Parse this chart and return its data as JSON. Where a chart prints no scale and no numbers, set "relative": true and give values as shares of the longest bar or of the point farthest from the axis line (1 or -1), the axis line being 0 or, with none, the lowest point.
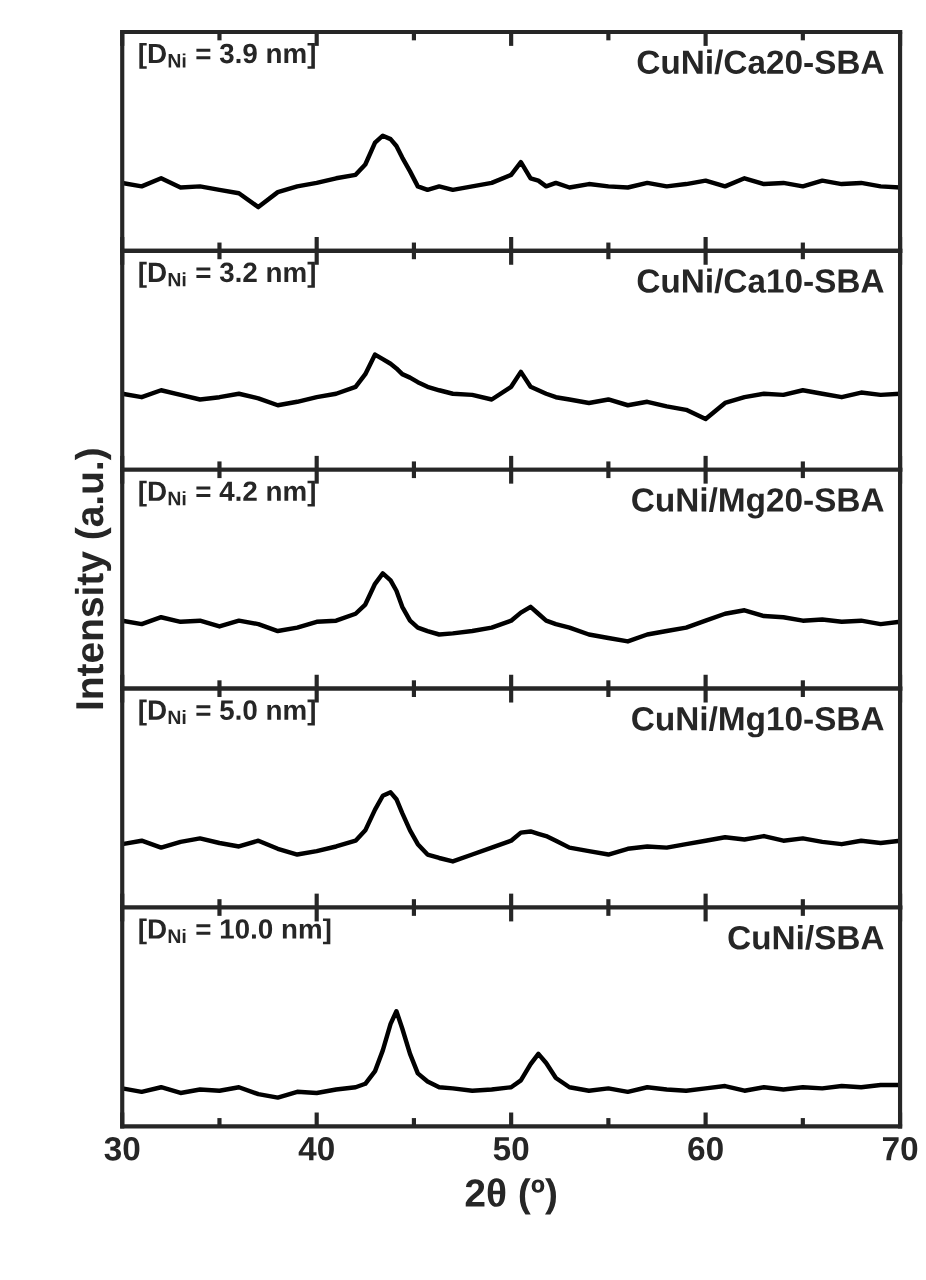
{
  "chart_data": [
    {
      "type": "line",
      "relative": true,
      "xlim": [
        30,
        70
      ],
      "xticks": [
        30,
        40,
        50,
        60,
        70
      ],
      "tick_labels": false,
      "annotations": [
        "[D$_{Ni}$ = 3.9 nm]",
        "CuNi/Ca20-SBA"
      ],
      "x": [
        30,
        31,
        32,
        33,
        34,
        35,
        36,
        37,
        38,
        39,
        40,
        41,
        42,
        42.5,
        43,
        43.4,
        43.8,
        44.1,
        44.4,
        44.8,
        45.2,
        45.7,
        46.3,
        47,
        48,
        49,
        50,
        50.5,
        51,
        51.4,
        51.8,
        52.3,
        53,
        54,
        55,
        56,
        57,
        58,
        59,
        60,
        61,
        62,
        63,
        64,
        65,
        66,
        67,
        68,
        69,
        70
      ],
      "series": [
        {
          "color": "#000000",
          "values": [
            0.59,
            0.56,
            0.63,
            0.55,
            0.56,
            0.53,
            0.5,
            0.38,
            0.51,
            0.56,
            0.59,
            0.63,
            0.66,
            0.75,
            0.94,
            1.0,
            0.97,
            0.91,
            0.81,
            0.69,
            0.56,
            0.53,
            0.56,
            0.53,
            0.56,
            0.59,
            0.66,
            0.77,
            0.63,
            0.61,
            0.56,
            0.59,
            0.55,
            0.58,
            0.56,
            0.55,
            0.59,
            0.56,
            0.58,
            0.61,
            0.56,
            0.63,
            0.58,
            0.59,
            0.56,
            0.61,
            0.58,
            0.59,
            0.56,
            0.55
          ]
        }
      ]
    },
    {
      "type": "line",
      "relative": true,
      "xlim": [
        30,
        70
      ],
      "xticks": [
        30,
        40,
        50,
        60,
        70
      ],
      "tick_labels": false,
      "annotations": [
        "[D$_{Ni}$ = 3.2 nm]",
        "CuNi/Ca10-SBA"
      ],
      "x": [
        30,
        31,
        32,
        33,
        34,
        35,
        36,
        37,
        38,
        39,
        40,
        41,
        42,
        42.5,
        43,
        43.4,
        43.8,
        44.1,
        44.4,
        44.8,
        45.2,
        45.7,
        46.3,
        47,
        48,
        49,
        50,
        50.5,
        51,
        51.4,
        51.8,
        52.3,
        53,
        54,
        55,
        56,
        57,
        58,
        59,
        60,
        61,
        62,
        63,
        64,
        65,
        66,
        67,
        68,
        69,
        70
      ],
      "series": [
        {
          "color": "#000000",
          "values": [
            0.66,
            0.63,
            0.69,
            0.65,
            0.61,
            0.63,
            0.66,
            0.62,
            0.56,
            0.59,
            0.63,
            0.66,
            0.72,
            0.83,
            1.0,
            0.96,
            0.92,
            0.88,
            0.83,
            0.8,
            0.76,
            0.72,
            0.69,
            0.66,
            0.65,
            0.61,
            0.72,
            0.85,
            0.72,
            0.69,
            0.66,
            0.63,
            0.61,
            0.58,
            0.61,
            0.56,
            0.59,
            0.55,
            0.52,
            0.44,
            0.58,
            0.63,
            0.66,
            0.65,
            0.69,
            0.66,
            0.63,
            0.67,
            0.65,
            0.66
          ]
        }
      ]
    },
    {
      "type": "line",
      "relative": true,
      "xlim": [
        30,
        70
      ],
      "xticks": [
        30,
        40,
        50,
        60,
        70
      ],
      "tick_labels": false,
      "ylabel": "Intensity (a.u.)",
      "annotations": [
        "[D$_{Ni}$ = 4.2 nm]",
        "CuNi/Mg20-SBA"
      ],
      "x": [
        30,
        31,
        32,
        33,
        34,
        35,
        36,
        37,
        38,
        39,
        40,
        41,
        42,
        42.5,
        43,
        43.4,
        43.8,
        44.1,
        44.4,
        44.8,
        45.2,
        45.7,
        46.3,
        47,
        48,
        49,
        50,
        50.5,
        51,
        51.4,
        51.8,
        52.3,
        53,
        54,
        55,
        56,
        57,
        58,
        59,
        60,
        61,
        62,
        63,
        64,
        65,
        66,
        67,
        68,
        69,
        70
      ],
      "series": [
        {
          "color": "#000000",
          "values": [
            0.59,
            0.56,
            0.62,
            0.58,
            0.59,
            0.54,
            0.59,
            0.56,
            0.5,
            0.53,
            0.58,
            0.59,
            0.65,
            0.73,
            0.91,
            1.0,
            0.94,
            0.85,
            0.71,
            0.59,
            0.53,
            0.5,
            0.47,
            0.48,
            0.5,
            0.53,
            0.59,
            0.66,
            0.71,
            0.65,
            0.59,
            0.56,
            0.53,
            0.47,
            0.44,
            0.41,
            0.47,
            0.5,
            0.53,
            0.59,
            0.65,
            0.68,
            0.63,
            0.62,
            0.59,
            0.6,
            0.58,
            0.59,
            0.56,
            0.58
          ]
        }
      ]
    },
    {
      "type": "line",
      "relative": true,
      "xlim": [
        30,
        70
      ],
      "xticks": [
        30,
        40,
        50,
        60,
        70
      ],
      "tick_labels": false,
      "annotations": [
        "[D$_{Ni}$ = 5.0 nm]",
        "CuNi/Mg10-SBA"
      ],
      "x": [
        30,
        31,
        32,
        33,
        34,
        35,
        36,
        37,
        38,
        39,
        40,
        41,
        42,
        42.5,
        43,
        43.4,
        43.8,
        44.1,
        44.4,
        44.8,
        45.2,
        45.7,
        46.3,
        47,
        48,
        49,
        50,
        50.5,
        51,
        51.4,
        51.8,
        52.3,
        53,
        54,
        55,
        56,
        57,
        58,
        59,
        60,
        61,
        62,
        63,
        64,
        65,
        66,
        67,
        68,
        69,
        70
      ],
      "series": [
        {
          "color": "#000000",
          "values": [
            0.55,
            0.58,
            0.52,
            0.57,
            0.6,
            0.56,
            0.53,
            0.58,
            0.51,
            0.46,
            0.49,
            0.53,
            0.58,
            0.67,
            0.85,
            0.97,
            1.0,
            0.94,
            0.82,
            0.67,
            0.55,
            0.46,
            0.43,
            0.4,
            0.46,
            0.52,
            0.58,
            0.65,
            0.66,
            0.64,
            0.62,
            0.58,
            0.52,
            0.49,
            0.46,
            0.51,
            0.53,
            0.52,
            0.55,
            0.58,
            0.61,
            0.59,
            0.62,
            0.58,
            0.6,
            0.57,
            0.55,
            0.58,
            0.56,
            0.58
          ]
        }
      ]
    },
    {
      "type": "line",
      "relative": true,
      "xlim": [
        30,
        70
      ],
      "xticks": [
        30,
        40,
        50,
        60,
        70
      ],
      "tick_labels": "x",
      "xlabel": "2θ (º)",
      "annotations": [
        "[D$_{Ni}$ = 10.0 nm]",
        "CuNi/SBA"
      ],
      "x": [
        30,
        31,
        32,
        33,
        34,
        35,
        36,
        37,
        38,
        39,
        40,
        41,
        42,
        42.5,
        43,
        43.4,
        43.8,
        44.1,
        44.4,
        44.8,
        45.2,
        45.7,
        46.3,
        47,
        48,
        49,
        50,
        50.5,
        51,
        51.4,
        51.8,
        52.3,
        53,
        54,
        55,
        56,
        57,
        58,
        59,
        60,
        61,
        62,
        63,
        64,
        65,
        66,
        67,
        68,
        69,
        70
      ],
      "series": [
        {
          "color": "#000000",
          "values": [
            0.33,
            0.3,
            0.34,
            0.29,
            0.32,
            0.31,
            0.34,
            0.28,
            0.25,
            0.3,
            0.29,
            0.32,
            0.34,
            0.37,
            0.48,
            0.66,
            0.89,
            1.0,
            0.85,
            0.63,
            0.46,
            0.39,
            0.34,
            0.33,
            0.31,
            0.32,
            0.34,
            0.4,
            0.54,
            0.63,
            0.55,
            0.42,
            0.34,
            0.31,
            0.33,
            0.3,
            0.34,
            0.32,
            0.31,
            0.33,
            0.35,
            0.31,
            0.34,
            0.32,
            0.34,
            0.33,
            0.35,
            0.34,
            0.36,
            0.36
          ]
        }
      ]
    }
  ]
}
